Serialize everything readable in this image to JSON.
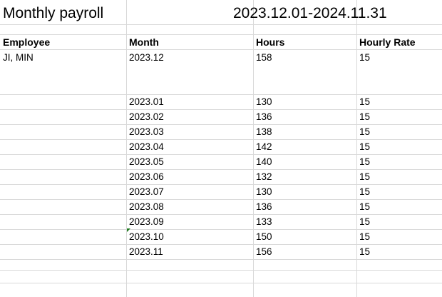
{
  "sheet": {
    "title": "Monthly payroll",
    "period": "2023.12.01-2024.11.31",
    "headers": {
      "employee": "Employee",
      "month": "Month",
      "hours": "Hours",
      "rate": "Hourly Rate"
    },
    "employee_name": "JI, MIN",
    "rows": [
      {
        "month": "2023.12",
        "hours": "158",
        "rate": "15"
      },
      {
        "month": "2023.01",
        "hours": "130",
        "rate": "15"
      },
      {
        "month": "2023.02",
        "hours": "136",
        "rate": "15"
      },
      {
        "month": "2023.03",
        "hours": "138",
        "rate": "15"
      },
      {
        "month": "2023.04",
        "hours": "142",
        "rate": "15"
      },
      {
        "month": "2023.05",
        "hours": "140",
        "rate": "15"
      },
      {
        "month": "2023.06",
        "hours": "132",
        "rate": "15"
      },
      {
        "month": "2023.07",
        "hours": "130",
        "rate": "15"
      },
      {
        "month": "2023.08",
        "hours": "136",
        "rate": "15"
      },
      {
        "month": "2023.09",
        "hours": "133",
        "rate": "15"
      },
      {
        "month": "2023.10",
        "hours": "150",
        "rate": "15"
      },
      {
        "month": "2023.11",
        "hours": "156",
        "rate": "15"
      }
    ]
  }
}
